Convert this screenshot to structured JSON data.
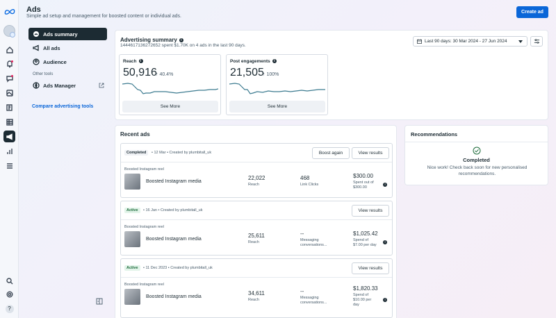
{
  "header": {
    "title": "Ads",
    "subtitle": "Simple ad setup and management for boosted content or individual ads.",
    "create_label": "Create ad"
  },
  "rail": {
    "icons": [
      "meta-logo-icon",
      "avatar",
      "home-icon",
      "notifications-icon",
      "chat-icon",
      "content-icon",
      "posts-icon",
      "calendar-table-icon",
      "ads-megaphone-icon",
      "insights-icon",
      "menu-icon",
      "search-icon",
      "settings-icon",
      "help-icon"
    ]
  },
  "nav": {
    "items": [
      {
        "label": "Ads summary",
        "icon": "summary-icon",
        "active": true
      },
      {
        "label": "All ads",
        "icon": "megaphone-icon"
      },
      {
        "label": "Audience",
        "icon": "audience-icon"
      }
    ],
    "other_tools_label": "Other tools",
    "ads_manager_label": "Ads Manager",
    "compare_label": "Compare advertising tools"
  },
  "summary": {
    "title": "Advertising summary",
    "subtitle": "1444617136272652 spent $1.70K on 4 ads in the last 90 days.",
    "date_range": "Last 90 days: 30 Mar 2024 - 27 Jun 2024",
    "metrics": [
      {
        "label": "Reach",
        "value": "50,916",
        "change": "40.4%",
        "see_more": "See More"
      },
      {
        "label": "Post engagements",
        "value": "21,505",
        "change": "100%",
        "see_more": "See More"
      }
    ]
  },
  "recent": {
    "title": "Recent ads",
    "ads": [
      {
        "status": "Completed",
        "meta": "• 12 Mar • Created by plumbitall_uk",
        "boost_again": "Boost again",
        "view_results": "View results",
        "type": "Boosted Instagram reel",
        "name": "Boosted Instagram media",
        "metric1_value": "22,022",
        "metric1_label": "Reach",
        "metric2_value": "468",
        "metric2_label": "Link Clicks",
        "spend": "$300.00",
        "spend_note_1": "Spent out of",
        "spend_note_2": "$300.00"
      },
      {
        "status": "Active",
        "meta": "• 16 Jan • Created by plumbitall_uk",
        "view_results": "View results",
        "type": "Boosted Instagram reel",
        "name": "Boosted Instagram media",
        "metric1_value": "25,611",
        "metric1_label": "Reach",
        "metric2_value": "--",
        "metric2_label_1": "Messaging",
        "metric2_label_2": "conversations...",
        "spend": "$1,025.42",
        "spend_note_1": "Spend of",
        "spend_note_2": "$7.00 per day"
      },
      {
        "status": "Active",
        "meta": "• 11 Dec 2023 • Created by plumbitall_uk",
        "view_results": "View results",
        "type": "Boosted Instagram reel",
        "name": "Boosted Instagram media",
        "metric1_value": "34,611",
        "metric1_label": "Reach",
        "metric2_value": "--",
        "metric2_label_1": "Messaging",
        "metric2_label_2": "conversations...",
        "spend": "$1,820.33",
        "spend_note_1": "Spend of",
        "spend_note_2": "$10.00 per",
        "spend_note_3": "day"
      }
    ]
  },
  "recommendations": {
    "title": "Recommendations",
    "status": "Completed",
    "text": "Nice work! Check back soon for new personalised recommendations."
  },
  "colors": {
    "primary": "#0a66d8",
    "dark": "#1c2b33",
    "active_chip": "#e3f4ea"
  }
}
